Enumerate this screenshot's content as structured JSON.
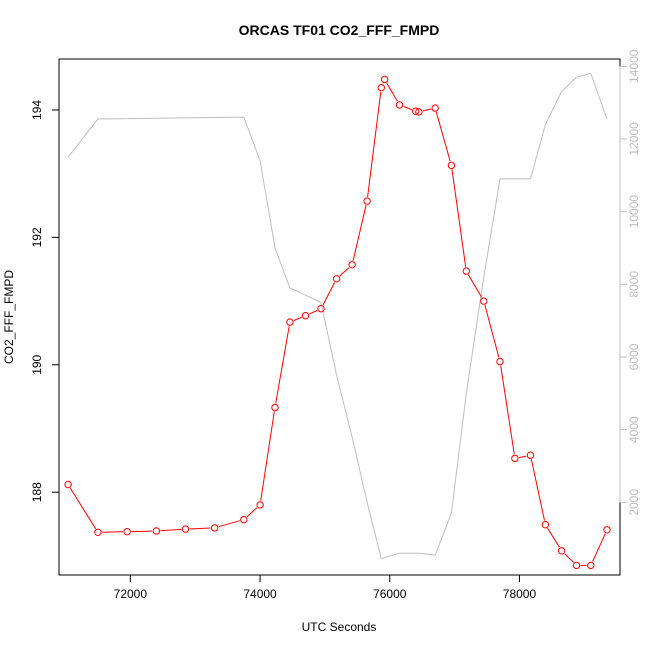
{
  "chart_data": {
    "type": "line",
    "title": "ORCAS TF01 CO2_FFF_FMPD",
    "xlabel": "UTC Seconds",
    "ylabel": "CO2_FFF_FMPD",
    "xlim": [
      70900,
      79550
    ],
    "ylim_left": [
      186.7,
      194.8
    ],
    "ylim_right": [
      0,
      14200
    ],
    "x_ticks": [
      72000,
      74000,
      76000,
      78000
    ],
    "y_ticks_left": [
      188,
      190,
      192,
      194
    ],
    "y_ticks_right": [
      2000,
      4000,
      6000,
      8000,
      10000,
      12000,
      14000
    ],
    "grid": false,
    "legend": "none",
    "colors": {
      "co2": "#ff0000",
      "secondary": "#bebebe",
      "axis": "#000000"
    },
    "series": [
      {
        "axis": "left",
        "style": "line+points",
        "x": [
          71040,
          71500,
          71950,
          72400,
          72850,
          73300,
          73750,
          74000,
          74230,
          74460,
          74700,
          74940,
          75180,
          75420,
          75650,
          75870,
          75920,
          76150,
          76400,
          76450,
          76700,
          76950,
          77180,
          77450,
          77700,
          77930,
          78170,
          78400,
          78650,
          78880,
          79100,
          79350
        ],
        "y": [
          188.12,
          187.37,
          187.38,
          187.39,
          187.42,
          187.44,
          187.57,
          187.8,
          189.33,
          190.67,
          190.77,
          190.88,
          191.35,
          191.57,
          192.57,
          194.35,
          194.48,
          194.08,
          193.98,
          193.97,
          194.03,
          193.13,
          191.47,
          191.0,
          190.05,
          188.53,
          188.58,
          187.49,
          187.08,
          186.85,
          186.85,
          187.41
        ]
      },
      {
        "axis": "right",
        "style": "line",
        "x": [
          71040,
          71500,
          73750,
          74000,
          74230,
          74460,
          74700,
          74940,
          75180,
          75420,
          75650,
          75870,
          76150,
          76450,
          76700,
          76950,
          77180,
          77450,
          77700,
          77930,
          78170,
          78400,
          78650,
          78880,
          79100,
          79350
        ],
        "y": [
          11500,
          12550,
          12600,
          11400,
          9000,
          7900,
          7700,
          7500,
          5500,
          3800,
          2000,
          450,
          600,
          600,
          550,
          1700,
          5000,
          8200,
          10900,
          10900,
          10900,
          12400,
          13300,
          13700,
          13800,
          12550
        ]
      }
    ]
  }
}
